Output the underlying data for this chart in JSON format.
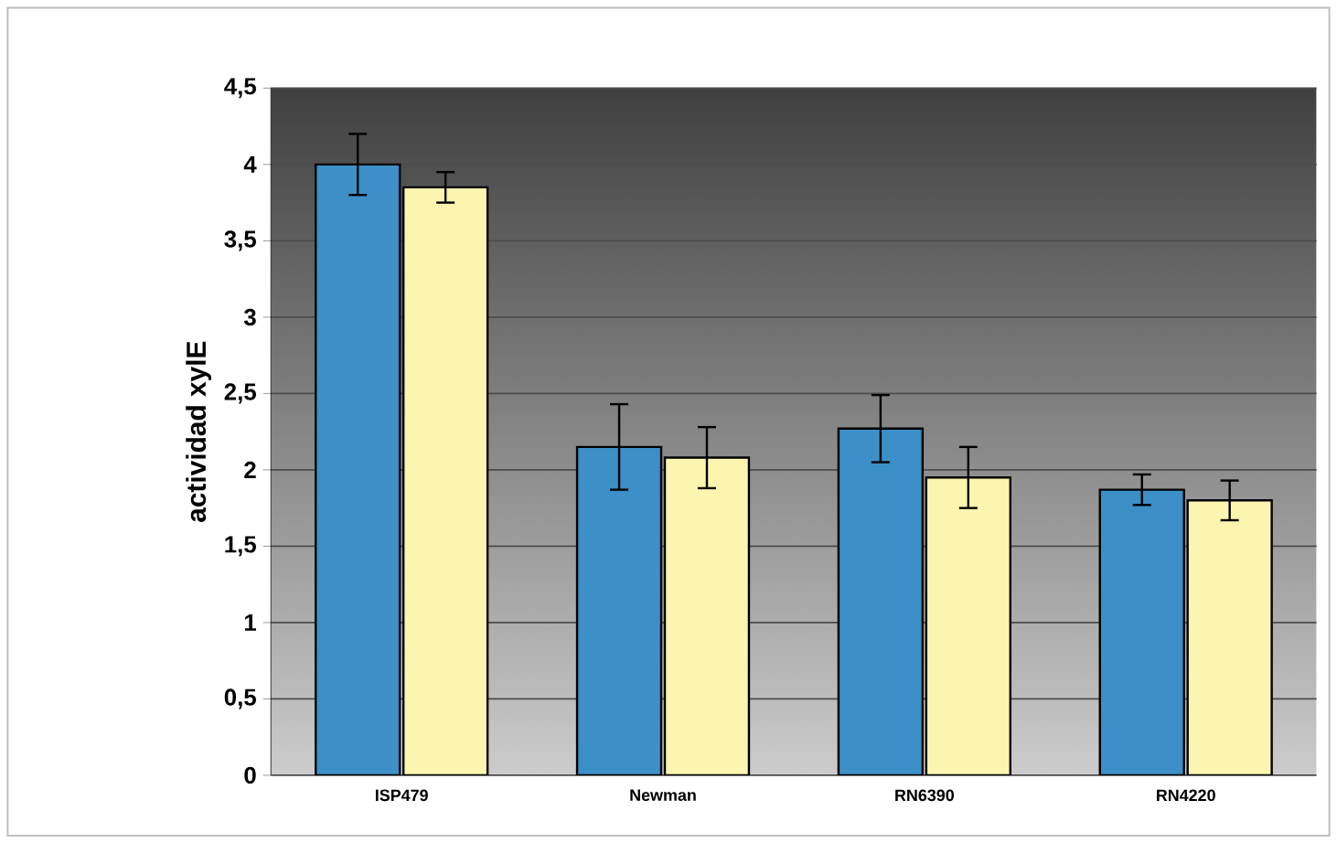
{
  "chart_data": {
    "type": "bar",
    "ylabel": "actividad xylE",
    "categories": [
      "ISP479",
      "Newman",
      "RN6390",
      "RN4220"
    ],
    "series": [
      {
        "color": "#3d8fc8",
        "values": [
          4.0,
          2.15,
          2.27,
          1.87
        ],
        "errors": [
          0.2,
          0.28,
          0.22,
          0.1
        ]
      },
      {
        "color": "#fbf5b0",
        "values": [
          3.85,
          2.08,
          1.95,
          1.8
        ],
        "errors": [
          0.1,
          0.2,
          0.2,
          0.13
        ]
      }
    ],
    "ylim": [
      0,
      4.5
    ],
    "yticks": [
      {
        "value": 0,
        "label": "0"
      },
      {
        "value": 0.5,
        "label": "0,5"
      },
      {
        "value": 1,
        "label": "1"
      },
      {
        "value": 1.5,
        "label": "1,5"
      },
      {
        "value": 2,
        "label": "2"
      },
      {
        "value": 2.5,
        "label": "2,5"
      },
      {
        "value": 3,
        "label": "3"
      },
      {
        "value": 3.5,
        "label": "3,5"
      },
      {
        "value": 4,
        "label": "4"
      },
      {
        "value": 4.5,
        "label": "4,5"
      }
    ],
    "grid": "y"
  }
}
